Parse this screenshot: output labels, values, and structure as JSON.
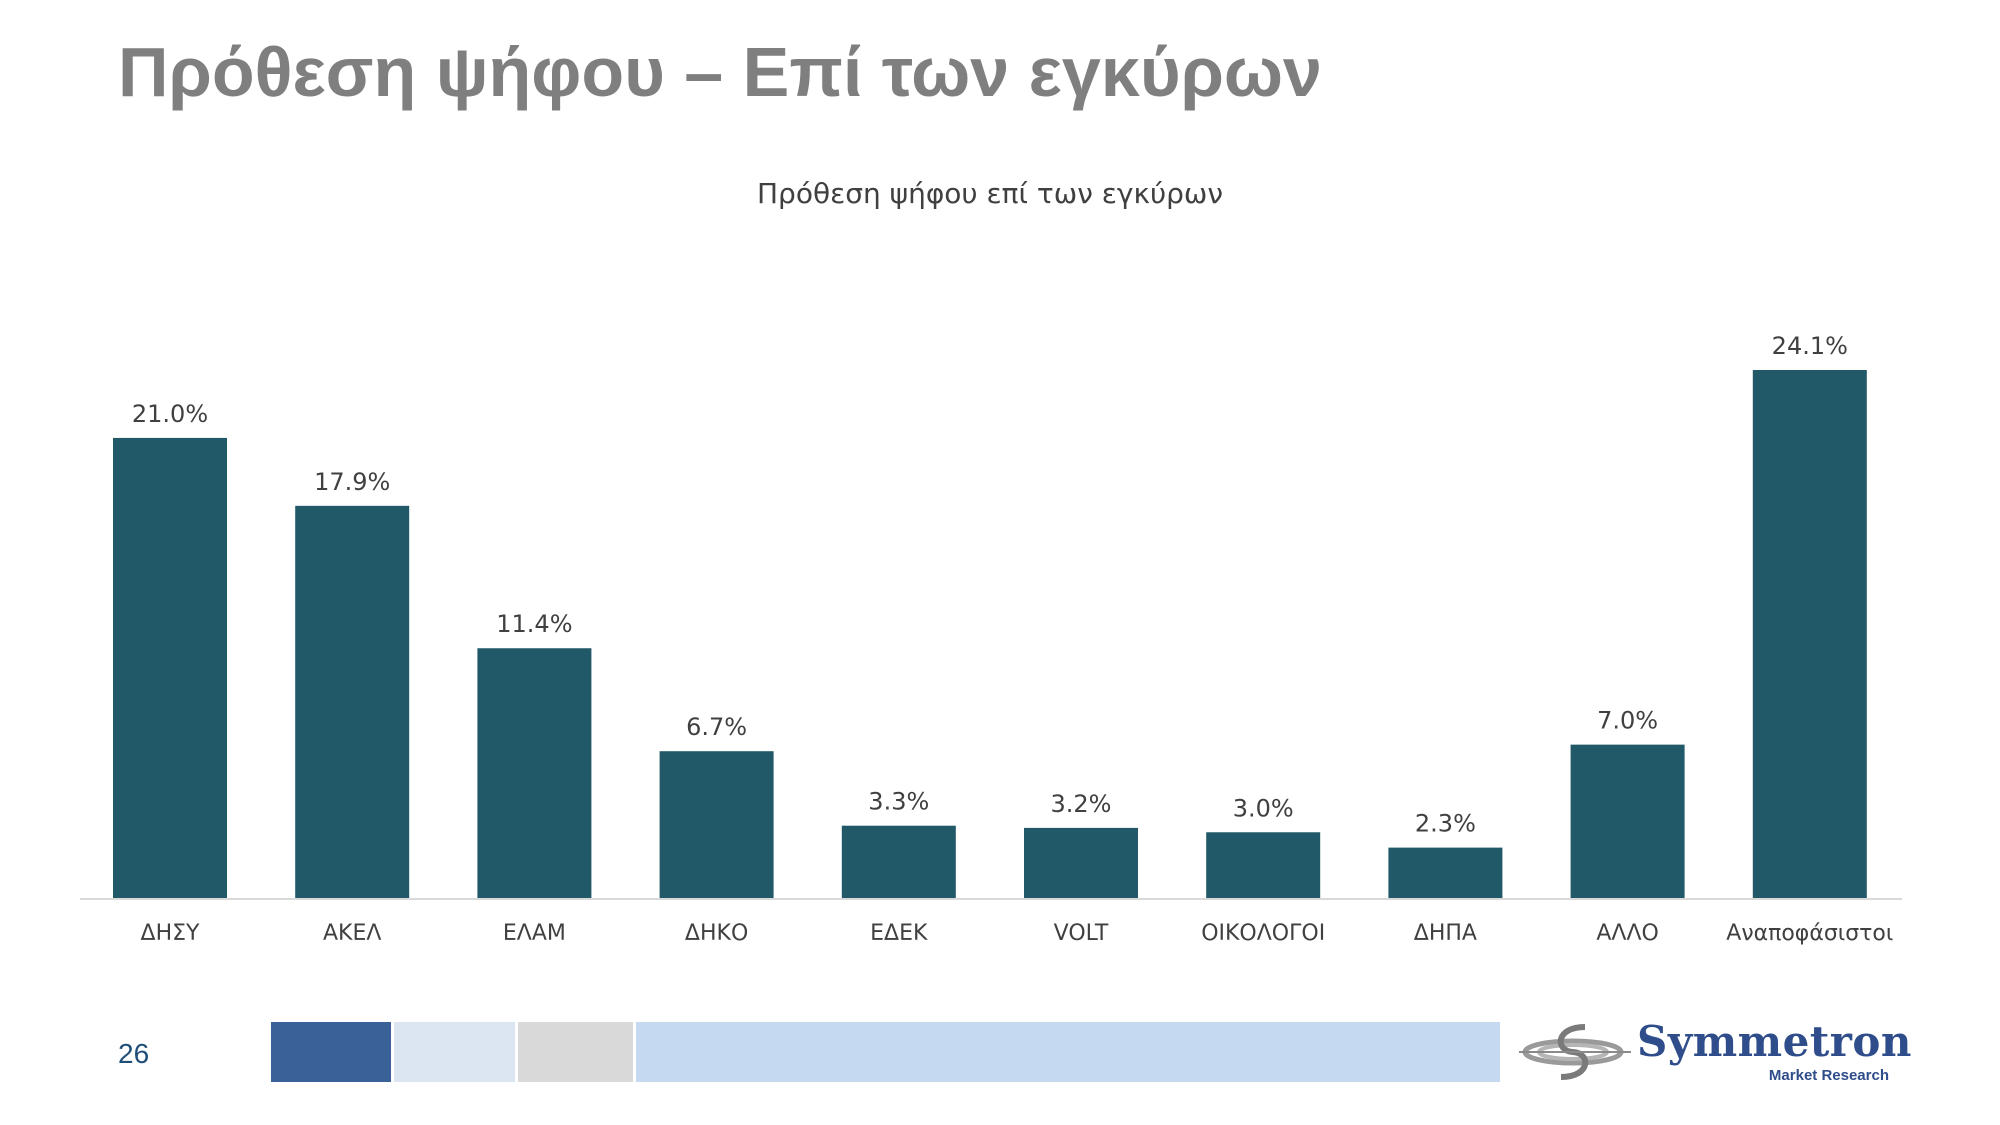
{
  "slide": {
    "title": "Πρόθεση ψήφου – Επί των εγκύρων",
    "page_number": "26"
  },
  "footer": {
    "strip_colors": [
      "#3a6198",
      "#dce6f2",
      "#d9d9d9",
      "#c5d9f1"
    ]
  },
  "logo": {
    "name": "Symmetron",
    "tagline": "Market Research"
  },
  "chart_data": {
    "type": "bar",
    "title": "Πρόθεση ψήφου επί των εγκύρων",
    "xlabel": "",
    "ylabel": "",
    "categories": [
      "ΔΗΣΥ",
      "ΑΚΕΛ",
      "ΕΛΑΜ",
      "ΔΗΚΟ",
      "ΕΔΕΚ",
      "VOLT",
      "ΟΙΚΟΛΟΓΟΙ",
      "ΔΗΠΑ",
      "ΑΛΛΟ",
      "Αναποφάσιστοι"
    ],
    "values": [
      21.0,
      17.9,
      11.4,
      6.7,
      3.3,
      3.2,
      3.0,
      2.3,
      7.0,
      24.1
    ],
    "labels": [
      "21.0%",
      "17.9%",
      "11.4%",
      "6.7%",
      "3.3%",
      "3.2%",
      "3.0%",
      "2.3%",
      "7.0%",
      "24.1%"
    ],
    "ylim": [
      0,
      24.1
    ],
    "grid": false,
    "legend": "none",
    "bar_color": "#215968"
  }
}
